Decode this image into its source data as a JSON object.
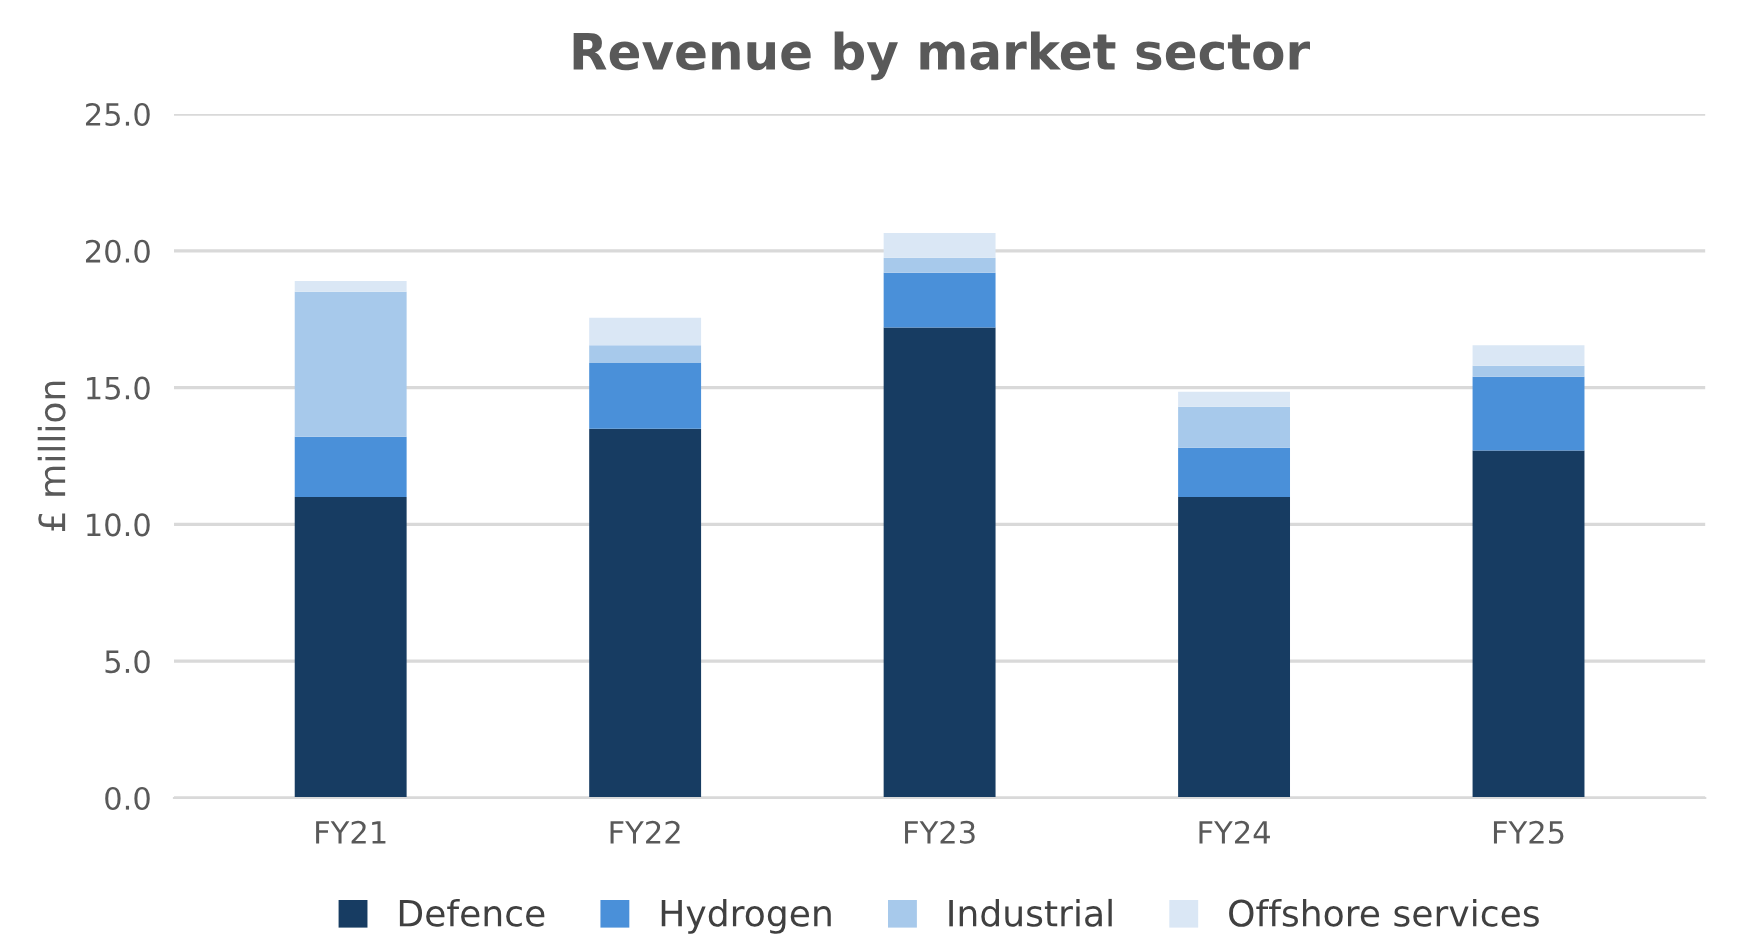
{
  "chart_data": {
    "type": "bar",
    "title": "Revenue by market sector",
    "ylabel": "£ million",
    "categories": [
      "FY21",
      "FY22",
      "FY23",
      "FY24",
      "FY25"
    ],
    "series": [
      {
        "name": "Defence",
        "color": "#173c62",
        "values": [
          11.0,
          13.5,
          17.2,
          11.0,
          12.7
        ]
      },
      {
        "name": "Hydrogen",
        "color": "#4a90d9",
        "values": [
          2.2,
          2.4,
          2.0,
          1.8,
          2.7
        ]
      },
      {
        "name": "Industrial",
        "color": "#a7c9eb",
        "values": [
          5.3,
          0.65,
          0.55,
          1.5,
          0.4
        ]
      },
      {
        "name": "Offshore services",
        "color": "#dae7f5",
        "values": [
          0.4,
          1.0,
          0.9,
          0.55,
          0.75
        ]
      }
    ],
    "stacked": true,
    "ylim": [
      0,
      25
    ],
    "yticks": [
      {
        "value": 0,
        "label": "0.0"
      },
      {
        "value": 5,
        "label": "5.0"
      },
      {
        "value": 10,
        "label": "10.0"
      },
      {
        "value": 15,
        "label": "15.0"
      },
      {
        "value": 20,
        "label": "20.0"
      },
      {
        "value": 25,
        "label": "25.0"
      }
    ],
    "grid": "y",
    "legend": "bottom"
  }
}
